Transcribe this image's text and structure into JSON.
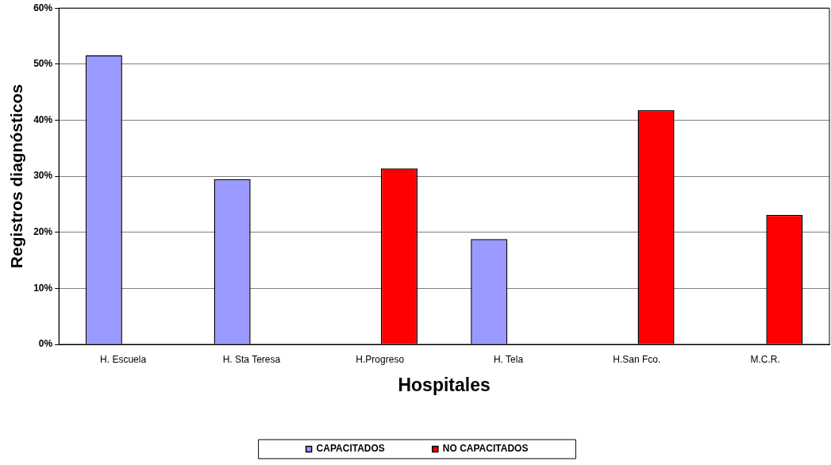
{
  "chart_data": {
    "type": "bar",
    "xlabel": "Hospitales",
    "ylabel": "Registros diagnósticos",
    "categories": [
      "H. Escuela",
      "H. Sta Teresa",
      "H.Progreso",
      "H. Tela",
      "H.San Fco.",
      "M.C.R."
    ],
    "series": [
      {
        "name": "CAPACITADOS",
        "color": "#9999ff",
        "values": [
          51.6,
          29.5,
          null,
          18.8,
          null,
          null
        ]
      },
      {
        "name": "NO CAPACITADOS",
        "color": "#ff0000",
        "values": [
          null,
          null,
          31.4,
          null,
          41.8,
          23.1
        ]
      }
    ],
    "ylim": [
      0,
      60
    ],
    "yticks": [
      {
        "value": 0,
        "label": "0%"
      },
      {
        "value": 10,
        "label": "10%"
      },
      {
        "value": 20,
        "label": "20%"
      },
      {
        "value": 30,
        "label": "30%"
      },
      {
        "value": 40,
        "label": "40%"
      },
      {
        "value": 50,
        "label": "50%"
      },
      {
        "value": 60,
        "label": "60%"
      }
    ],
    "grid": "y",
    "legend": "bottom"
  }
}
